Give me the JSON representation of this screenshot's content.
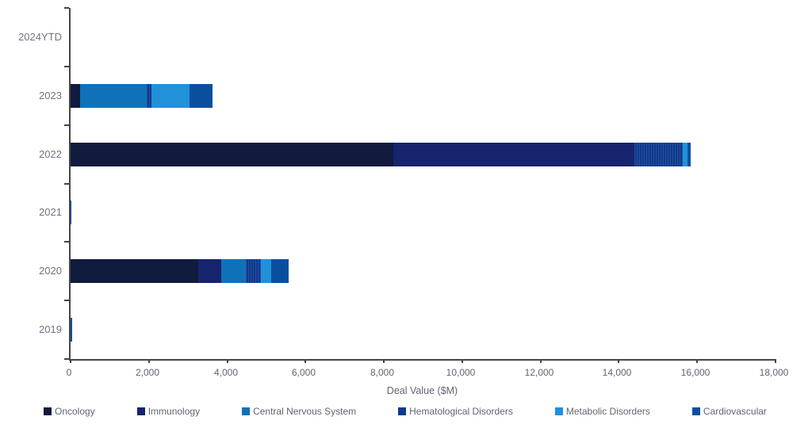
{
  "chart_data": {
    "type": "bar",
    "orientation": "horizontal",
    "stacked": true,
    "title": "",
    "xlabel": "Deal Value ($M)",
    "ylabel": "",
    "xlim": [
      0,
      18000
    ],
    "grid": false,
    "legend_position": "bottom",
    "categories": [
      "2024YTD",
      "2023",
      "2022",
      "2021",
      "2020",
      "2019"
    ],
    "series": [
      {
        "name": "Oncology",
        "color": "#101b3e",
        "values": [
          0,
          250,
          8250,
          0,
          3250,
          0
        ]
      },
      {
        "name": "Immunology",
        "color": "#16246e",
        "values": [
          0,
          0,
          6150,
          0,
          600,
          0
        ]
      },
      {
        "name": "Central Nervous System",
        "color": "#0f72b8",
        "values": [
          0,
          1700,
          0,
          0,
          630,
          0
        ]
      },
      {
        "name": "Hematological Disorders",
        "color": "#0e3a8e",
        "texture": "vertical-stripes",
        "values": [
          0,
          120,
          1230,
          0,
          380,
          0
        ]
      },
      {
        "name": "Metabolic Disorders",
        "color": "#2191d9",
        "values": [
          0,
          960,
          120,
          0,
          270,
          0
        ]
      },
      {
        "name": "Cardiovascular",
        "color": "#0a4f9e",
        "values": [
          0,
          590,
          80,
          30,
          440,
          40
        ]
      }
    ],
    "x_ticks": [
      0,
      2000,
      4000,
      6000,
      8000,
      10000,
      12000,
      14000,
      16000,
      18000
    ],
    "x_tick_labels": [
      "0",
      "2,000",
      "4,000",
      "6,000",
      "8,000",
      "10,000",
      "12,000",
      "14,000",
      "16,000",
      "18,000"
    ],
    "axis_color": "#454545",
    "label_color": "#6e7480"
  }
}
